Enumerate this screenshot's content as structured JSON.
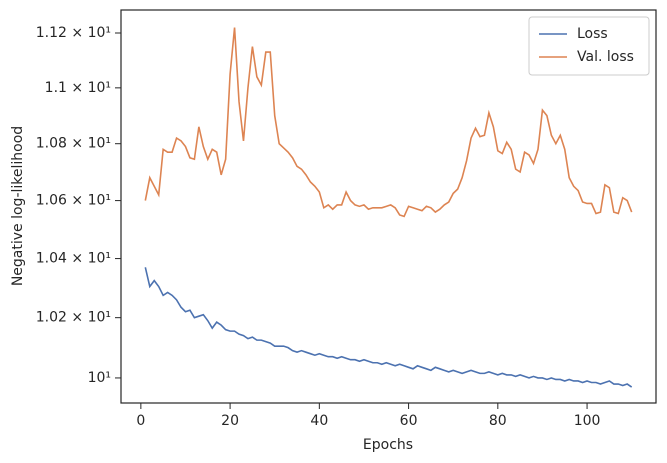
{
  "chart_data": {
    "type": "line",
    "xlabel": "Epochs",
    "ylabel": "Negative log-likelihood",
    "yscale": "log",
    "legend": "upper right",
    "xlim": [
      -4.45,
      115.45
    ],
    "xticks": [
      0,
      20,
      40,
      60,
      80,
      100
    ],
    "ylim": [
      9.918,
      11.285
    ],
    "yticks": [
      {
        "value": 10,
        "label": "10¹"
      },
      {
        "value": 10.2,
        "label": "1.02 × 10¹"
      },
      {
        "value": 10.4,
        "label": "1.04 × 10¹"
      },
      {
        "value": 10.6,
        "label": "1.06 × 10¹"
      },
      {
        "value": 10.8,
        "label": "1.08 × 10¹"
      },
      {
        "value": 11.0,
        "label": "1.1 × 10¹"
      },
      {
        "value": 11.2,
        "label": "1.12 × 10¹"
      }
    ],
    "x": [
      1,
      2,
      3,
      4,
      5,
      6,
      7,
      8,
      9,
      10,
      11,
      12,
      13,
      14,
      15,
      16,
      17,
      18,
      19,
      20,
      21,
      22,
      23,
      24,
      25,
      26,
      27,
      28,
      29,
      30,
      31,
      32,
      33,
      34,
      35,
      36,
      37,
      38,
      39,
      40,
      41,
      42,
      43,
      44,
      45,
      46,
      47,
      48,
      49,
      50,
      51,
      52,
      53,
      54,
      55,
      56,
      57,
      58,
      59,
      60,
      61,
      62,
      63,
      64,
      65,
      66,
      67,
      68,
      69,
      70,
      71,
      72,
      73,
      74,
      75,
      76,
      77,
      78,
      79,
      80,
      81,
      82,
      83,
      84,
      85,
      86,
      87,
      88,
      89,
      90,
      91,
      92,
      93,
      94,
      95,
      96,
      97,
      98,
      99,
      100,
      101,
      102,
      103,
      104,
      105,
      106,
      107,
      108,
      109,
      110
    ],
    "series": [
      {
        "name": "Loss",
        "color": "#4c72b0",
        "values": [
          10.37,
          10.305,
          10.325,
          10.305,
          10.275,
          10.285,
          10.275,
          10.26,
          10.235,
          10.22,
          10.225,
          10.2,
          10.205,
          10.21,
          10.19,
          10.165,
          10.185,
          10.175,
          10.16,
          10.155,
          10.155,
          10.145,
          10.14,
          10.13,
          10.135,
          10.125,
          10.125,
          10.12,
          10.115,
          10.105,
          10.105,
          10.105,
          10.1,
          10.09,
          10.085,
          10.09,
          10.085,
          10.08,
          10.075,
          10.08,
          10.075,
          10.07,
          10.07,
          10.065,
          10.07,
          10.065,
          10.06,
          10.06,
          10.055,
          10.06,
          10.055,
          10.05,
          10.05,
          10.045,
          10.05,
          10.045,
          10.04,
          10.045,
          10.04,
          10.035,
          10.03,
          10.04,
          10.035,
          10.03,
          10.025,
          10.035,
          10.03,
          10.025,
          10.02,
          10.025,
          10.02,
          10.015,
          10.02,
          10.025,
          10.02,
          10.015,
          10.015,
          10.02,
          10.015,
          10.01,
          10.015,
          10.01,
          10.01,
          10.005,
          10.01,
          10.005,
          10.0,
          10.005,
          10.0,
          10.0,
          9.995,
          10.0,
          9.995,
          9.995,
          9.99,
          9.995,
          9.99,
          9.99,
          9.985,
          9.99,
          9.985,
          9.985,
          9.98,
          9.985,
          9.99,
          9.98,
          9.98,
          9.975,
          9.98,
          9.97
        ]
      },
      {
        "name": "Val. loss",
        "color": "#dd8452",
        "values": [
          10.6,
          10.68,
          10.65,
          10.62,
          10.78,
          10.77,
          10.77,
          10.82,
          10.81,
          10.79,
          10.75,
          10.745,
          10.86,
          10.79,
          10.745,
          10.78,
          10.77,
          10.69,
          10.745,
          11.05,
          11.22,
          10.95,
          10.81,
          11.0,
          11.15,
          11.04,
          11.01,
          11.13,
          11.13,
          10.9,
          10.8,
          10.785,
          10.77,
          10.75,
          10.72,
          10.71,
          10.69,
          10.665,
          10.65,
          10.63,
          10.575,
          10.585,
          10.57,
          10.585,
          10.585,
          10.63,
          10.6,
          10.585,
          10.58,
          10.585,
          10.57,
          10.575,
          10.575,
          10.575,
          10.58,
          10.585,
          10.575,
          10.55,
          10.545,
          10.58,
          10.575,
          10.57,
          10.565,
          10.58,
          10.575,
          10.56,
          10.57,
          10.585,
          10.595,
          10.625,
          10.64,
          10.68,
          10.74,
          10.82,
          10.855,
          10.825,
          10.83,
          10.91,
          10.86,
          10.775,
          10.765,
          10.805,
          10.78,
          10.71,
          10.7,
          10.77,
          10.76,
          10.73,
          10.78,
          10.92,
          10.9,
          10.83,
          10.8,
          10.83,
          10.78,
          10.68,
          10.65,
          10.635,
          10.595,
          10.59,
          10.59,
          10.555,
          10.56,
          10.655,
          10.645,
          10.56,
          10.555,
          10.61,
          10.6,
          10.56
        ]
      }
    ]
  }
}
